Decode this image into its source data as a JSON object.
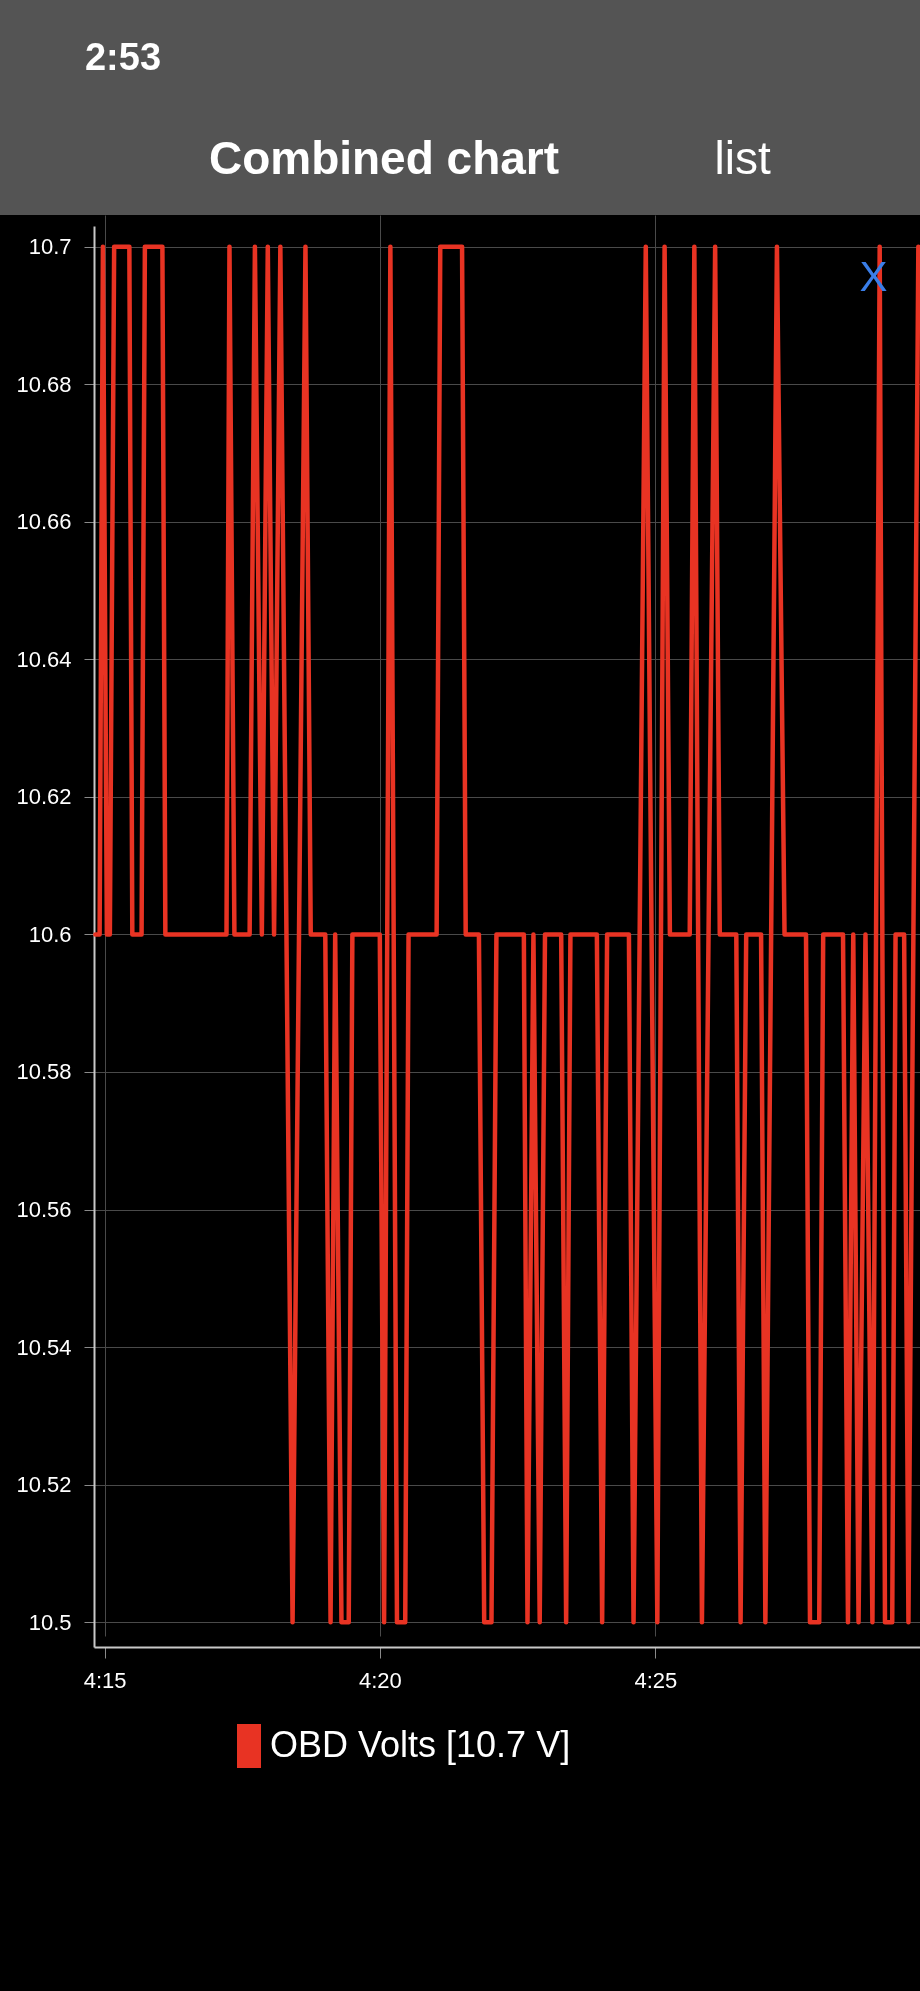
{
  "chart_data": {
    "type": "line",
    "title": "Combined chart",
    "x": [
      4.2472,
      4.2485,
      4.2495,
      4.2507,
      4.2516,
      4.2529,
      4.2575,
      4.2584,
      4.2612,
      4.2622,
      4.2675,
      4.2684,
      4.2869,
      4.2878,
      4.2893,
      4.2939,
      4.2955,
      4.2976,
      4.2994,
      4.3013,
      4.3032,
      4.3069,
      4.3108,
      4.3124,
      4.3168,
      4.3184,
      4.3198,
      4.3217,
      4.3239,
      4.325,
      4.3333,
      4.3346,
      4.3365,
      4.3385,
      4.341,
      4.342,
      4.3505,
      4.3516,
      4.3582,
      4.3593,
      4.3633,
      4.3649,
      4.3671,
      4.3686,
      4.3769,
      4.378,
      4.3798,
      4.3817,
      4.3833,
      4.3882,
      4.3897,
      4.391,
      4.399,
      4.4006,
      4.4021,
      4.4087,
      4.4101,
      4.4138,
      4.4173,
      4.4195,
      4.4211,
      4.4271,
      4.4285,
      4.4308,
      4.4348,
      4.4362,
      4.4412,
      4.4425,
      4.4442,
      4.4487,
      4.45,
      4.4535,
      4.4558,
      4.4623,
      4.4635,
      4.4663,
      4.4675,
      4.4735,
      4.475,
      4.4766,
      4.4782,
      4.4803,
      4.4824,
      4.4846,
      4.4862,
      4.4884,
      4.4894,
      4.492,
      4.4933,
      4.4963
    ],
    "series": [
      {
        "name": "OBD Volts [10.7 V]",
        "color": "#e83323",
        "values": [
          10.6,
          10.6,
          10.7,
          10.6,
          10.6,
          10.7,
          10.7,
          10.6,
          10.6,
          10.7,
          10.7,
          10.6,
          10.6,
          10.7,
          10.6,
          10.6,
          10.7,
          10.6,
          10.7,
          10.6,
          10.7,
          10.5,
          10.7,
          10.6,
          10.6,
          10.5,
          10.6,
          10.5,
          10.5,
          10.6,
          10.6,
          10.5,
          10.7,
          10.5,
          10.5,
          10.6,
          10.6,
          10.7,
          10.7,
          10.6,
          10.6,
          10.5,
          10.5,
          10.6,
          10.6,
          10.5,
          10.6,
          10.5,
          10.6,
          10.6,
          10.5,
          10.6,
          10.6,
          10.5,
          10.6,
          10.6,
          10.5,
          10.7,
          10.5,
          10.7,
          10.6,
          10.6,
          10.7,
          10.5,
          10.7,
          10.6,
          10.6,
          10.5,
          10.6,
          10.6,
          10.5,
          10.7,
          10.6,
          10.6,
          10.5,
          10.5,
          10.6,
          10.6,
          10.5,
          10.6,
          10.5,
          10.6,
          10.5,
          10.7,
          10.5,
          10.5,
          10.6,
          10.6,
          10.5,
          10.7
        ]
      }
    ],
    "xlim": [
      4.2468,
      4.4968
    ],
    "xticks": [
      {
        "value": 4.25,
        "label": "4:15"
      },
      {
        "value": 4.3333,
        "label": "4:20"
      },
      {
        "value": 4.4167,
        "label": "4:25"
      }
    ],
    "ylim": [
      10.4964,
      10.703
    ],
    "yticks": [
      10.5,
      10.52,
      10.54,
      10.56,
      10.58,
      10.6,
      10.62,
      10.64,
      10.66,
      10.68,
      10.7
    ],
    "grid": true,
    "legend": "bottom",
    "line_style": "solid",
    "annotations": [
      "2:53",
      "list",
      "X"
    ]
  }
}
